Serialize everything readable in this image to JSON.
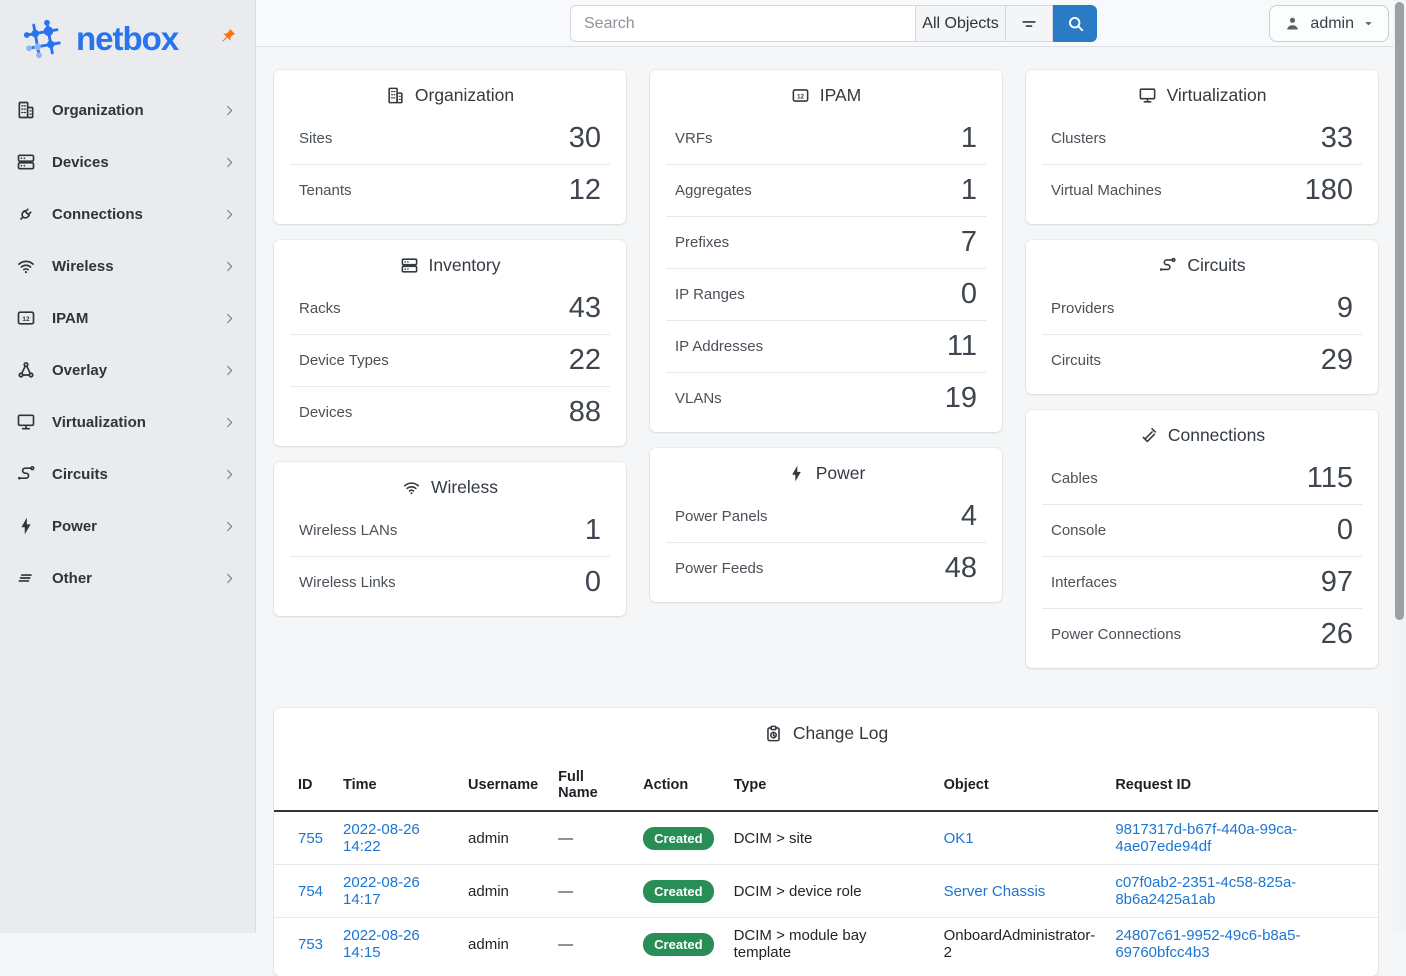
{
  "brand": {
    "name": "netbox"
  },
  "topbar": {
    "search_placeholder": "Search",
    "scope_button": "All Objects",
    "user": "admin"
  },
  "sidebar": {
    "items": [
      {
        "label": "Organization",
        "icon": "building"
      },
      {
        "label": "Devices",
        "icon": "server"
      },
      {
        "label": "Connections",
        "icon": "plug"
      },
      {
        "label": "Wireless",
        "icon": "wifi"
      },
      {
        "label": "IPAM",
        "icon": "ipam"
      },
      {
        "label": "Overlay",
        "icon": "overlay"
      },
      {
        "label": "Virtualization",
        "icon": "monitor"
      },
      {
        "label": "Circuits",
        "icon": "circuit"
      },
      {
        "label": "Power",
        "icon": "bolt"
      },
      {
        "label": "Other",
        "icon": "lines"
      }
    ]
  },
  "dashboard": {
    "columns": [
      [
        {
          "title": "Organization",
          "icon": "building",
          "rows": [
            {
              "label": "Sites",
              "value": "30"
            },
            {
              "label": "Tenants",
              "value": "12"
            }
          ]
        },
        {
          "title": "Inventory",
          "icon": "server",
          "rows": [
            {
              "label": "Racks",
              "value": "43"
            },
            {
              "label": "Device Types",
              "value": "22"
            },
            {
              "label": "Devices",
              "value": "88"
            }
          ]
        },
        {
          "title": "Wireless",
          "icon": "wifi",
          "rows": [
            {
              "label": "Wireless LANs",
              "value": "1"
            },
            {
              "label": "Wireless Links",
              "value": "0"
            }
          ]
        }
      ],
      [
        {
          "title": "IPAM",
          "icon": "ipam",
          "rows": [
            {
              "label": "VRFs",
              "value": "1"
            },
            {
              "label": "Aggregates",
              "value": "1"
            },
            {
              "label": "Prefixes",
              "value": "7"
            },
            {
              "label": "IP Ranges",
              "value": "0"
            },
            {
              "label": "IP Addresses",
              "value": "11"
            },
            {
              "label": "VLANs",
              "value": "19"
            }
          ]
        },
        {
          "title": "Power",
          "icon": "bolt",
          "rows": [
            {
              "label": "Power Panels",
              "value": "4"
            },
            {
              "label": "Power Feeds",
              "value": "48"
            }
          ]
        }
      ],
      [
        {
          "title": "Virtualization",
          "icon": "monitor",
          "rows": [
            {
              "label": "Clusters",
              "value": "33"
            },
            {
              "label": "Virtual Machines",
              "value": "180"
            }
          ]
        },
        {
          "title": "Circuits",
          "icon": "circuit",
          "rows": [
            {
              "label": "Providers",
              "value": "9"
            },
            {
              "label": "Circuits",
              "value": "29"
            }
          ]
        },
        {
          "title": "Connections",
          "icon": "cable",
          "rows": [
            {
              "label": "Cables",
              "value": "115"
            },
            {
              "label": "Console",
              "value": "0"
            },
            {
              "label": "Interfaces",
              "value": "97"
            },
            {
              "label": "Power Connections",
              "value": "26"
            }
          ]
        }
      ]
    ]
  },
  "changelog": {
    "title": "Change Log",
    "icon": "clipboard-clock",
    "columns": [
      "ID",
      "Time",
      "Username",
      "Full Name",
      "Action",
      "Type",
      "Object",
      "Request ID"
    ],
    "rows": [
      {
        "id": "755",
        "time": "2022-08-26 14:22",
        "username": "admin",
        "full_name": "—",
        "action": "Created",
        "type": "DCIM > site",
        "object": "OK1",
        "object_is_link": true,
        "request_id": "9817317d-b67f-440a-99ca-4ae07ede94df"
      },
      {
        "id": "754",
        "time": "2022-08-26 14:17",
        "username": "admin",
        "full_name": "—",
        "action": "Created",
        "type": "DCIM > device role",
        "object": "Server Chassis",
        "object_is_link": true,
        "request_id": "c07f0ab2-2351-4c58-825a-8b6a2425a1ab"
      },
      {
        "id": "753",
        "time": "2022-08-26 14:15",
        "username": "admin",
        "full_name": "—",
        "action": "Created",
        "type": "DCIM > module bay template",
        "object": "OnboardAdministrator-2",
        "object_is_link": false,
        "request_id": "24807c61-9952-49c6-b8a5-69760bfcc4b3"
      }
    ]
  },
  "colors": {
    "brand_blue": "#2973f0",
    "search_button_blue": "#2a7ac6",
    "link_blue": "#1b75d2",
    "badge_green": "#298e55",
    "pin_orange": "#f97316"
  }
}
